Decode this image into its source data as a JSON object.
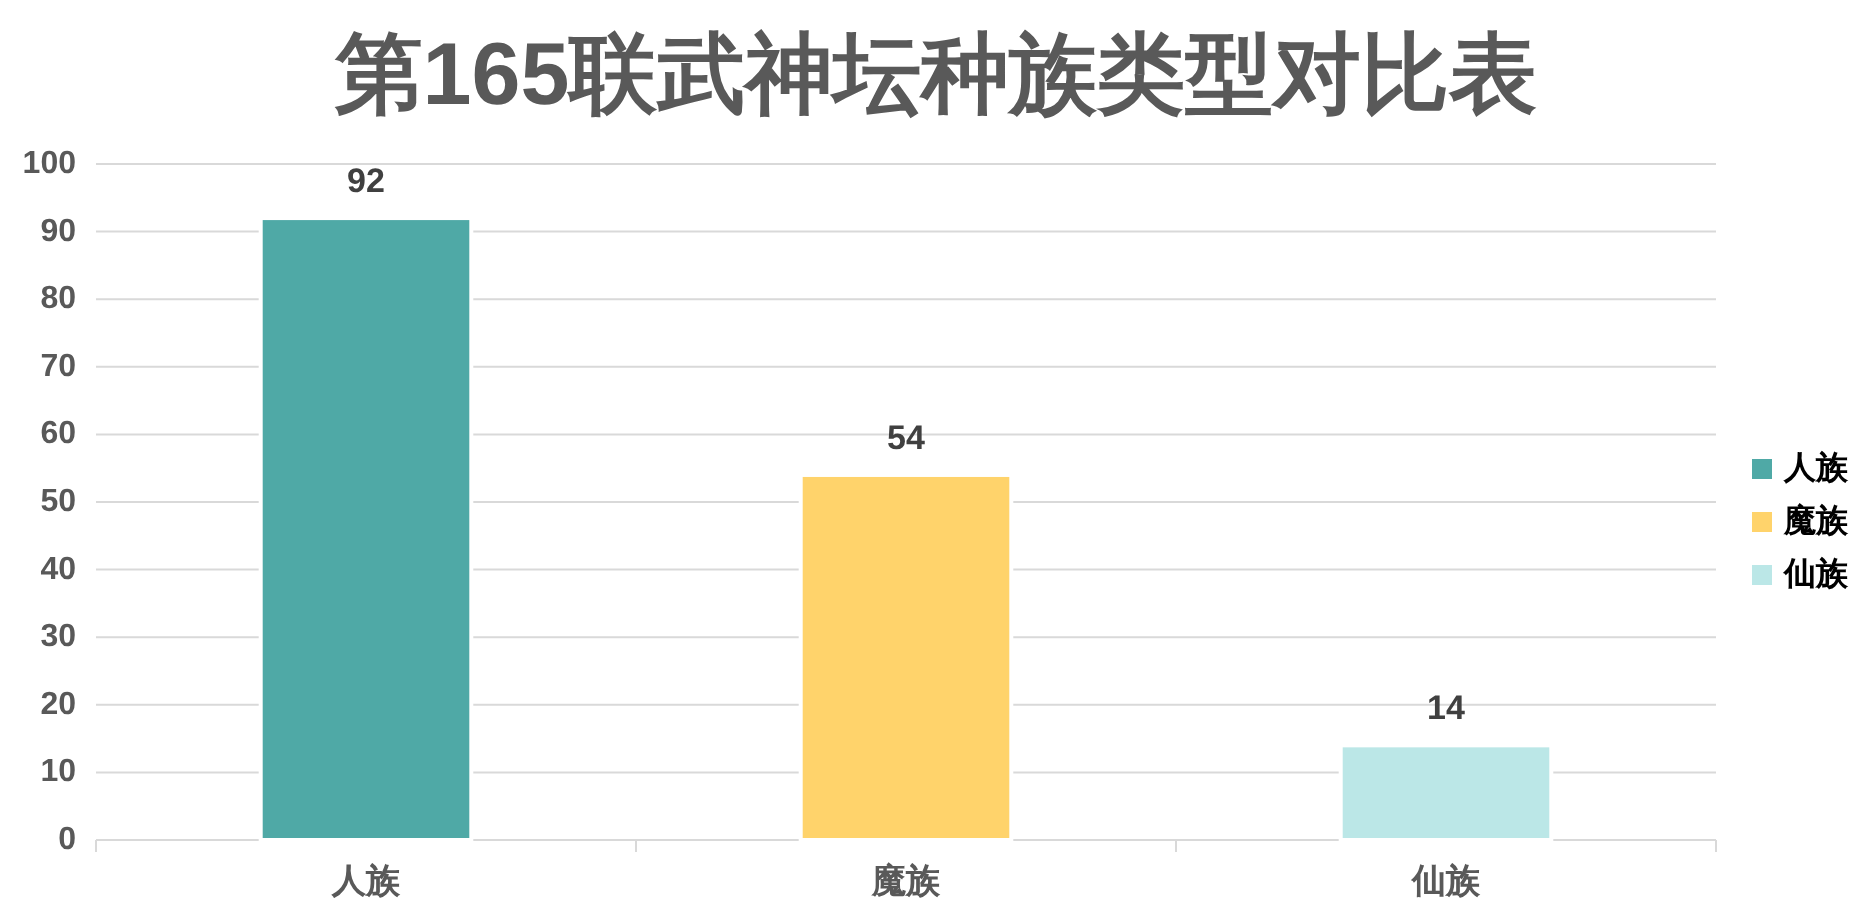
{
  "chart_data": {
    "type": "bar",
    "title": "第165联武神坛种族类型对比表",
    "categories": [
      "人族",
      "魔族",
      "仙族"
    ],
    "series": [
      {
        "name": "人族",
        "color": "#4fa9a6",
        "values": [
          92,
          null,
          null
        ]
      },
      {
        "name": "魔族",
        "color": "#ffd36b",
        "values": [
          null,
          54,
          null
        ]
      },
      {
        "name": "仙族",
        "color": "#bbe7e7",
        "values": [
          null,
          null,
          14
        ]
      }
    ],
    "ylim": [
      0,
      100
    ],
    "yticks": [
      0,
      10,
      20,
      30,
      40,
      50,
      60,
      70,
      80,
      90,
      100
    ],
    "grid": "y",
    "legend": "right",
    "data_labels": true
  }
}
